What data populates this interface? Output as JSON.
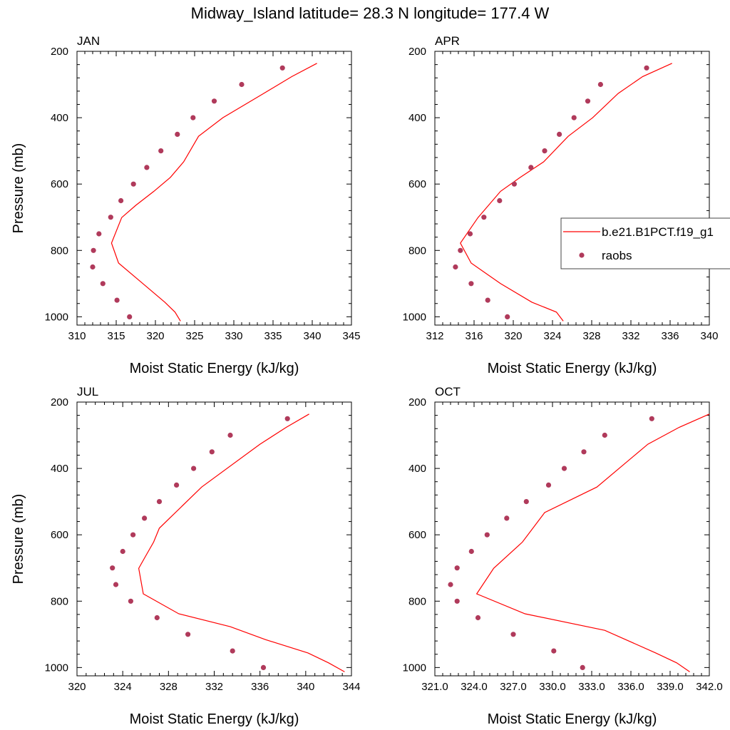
{
  "figure": {
    "title": "Midway_Island  latitude= 28.3 N longitude= 177.4 W"
  },
  "colors": {
    "model_line": "#ff0000",
    "raobs_marker": "#b03a5b",
    "axis": "#000000"
  },
  "chart_data": [
    {
      "type": "line",
      "panel": "JAN",
      "title": "JAN",
      "xlabel": "Moist Static Energy (kJ/kg)",
      "ylabel": "Pressure (mb)",
      "xlim": [
        310,
        345
      ],
      "ylim": [
        1025,
        200
      ],
      "xticks": [
        310,
        315,
        320,
        325,
        330,
        335,
        340,
        345
      ],
      "xtick_labels": [
        "310",
        "315",
        "320",
        "325",
        "330",
        "335",
        "340",
        "345"
      ],
      "yticks": [
        200,
        400,
        600,
        800,
        1000
      ],
      "ytick_labels": [
        "200",
        "400",
        "600",
        "800",
        "1000"
      ],
      "y_inverted": true,
      "series": [
        {
          "name": "b.e21.B1PCT.f19_g1",
          "kind": "line",
          "x": [
            340.6,
            337.4,
            333.8,
            328.6,
            325.5,
            323.6,
            321.9,
            319.8,
            317.5,
            315.7,
            314.4,
            315.3,
            318.4,
            321.2,
            322.5,
            323.2
          ],
          "y": [
            236,
            276,
            327,
            400,
            456,
            533,
            580,
            622,
            664,
            701,
            778,
            838,
            900,
            956,
            986,
            1013
          ]
        },
        {
          "name": "raobs",
          "kind": "scatter",
          "x": [
            336.2,
            331.0,
            327.5,
            324.8,
            322.8,
            320.7,
            318.9,
            317.2,
            315.6,
            314.3,
            312.8,
            312.1,
            312.0,
            313.3,
            315.1,
            316.7
          ],
          "y": [
            250,
            300,
            350,
            400,
            450,
            500,
            550,
            600,
            650,
            700,
            750,
            800,
            850,
            900,
            950,
            1000
          ]
        }
      ]
    },
    {
      "type": "line",
      "panel": "APR",
      "title": "APR",
      "xlabel": "Moist Static Energy (kJ/kg)",
      "ylabel": "",
      "xlim": [
        312,
        340
      ],
      "ylim": [
        1025,
        200
      ],
      "xticks": [
        312,
        316,
        320,
        324,
        328,
        332,
        336,
        340
      ],
      "xtick_labels": [
        "312",
        "316",
        "320",
        "324",
        "328",
        "332",
        "336",
        "340"
      ],
      "yticks": [
        200,
        400,
        600,
        800,
        1000
      ],
      "ytick_labels": [
        "200",
        "400",
        "600",
        "800",
        "1000"
      ],
      "y_inverted": true,
      "legend": {
        "position": "right",
        "entries": [
          "b.e21.B1PCT.f19_g1",
          "raobs"
        ]
      },
      "series": [
        {
          "name": "b.e21.B1PCT.f19_g1",
          "kind": "line",
          "x": [
            336.2,
            333.2,
            330.7,
            328.1,
            325.6,
            323.1,
            320.7,
            318.7,
            316.4,
            314.6,
            315.7,
            318.7,
            321.9,
            324.4,
            325.1
          ],
          "y": [
            236,
            276,
            327,
            400,
            456,
            533,
            580,
            622,
            701,
            778,
            838,
            900,
            956,
            986,
            1013
          ]
        },
        {
          "name": "raobs",
          "kind": "scatter",
          "x": [
            333.6,
            328.9,
            327.6,
            326.2,
            324.7,
            323.2,
            321.8,
            320.1,
            318.6,
            317.0,
            315.6,
            314.6,
            314.1,
            315.7,
            317.4,
            319.4
          ],
          "y": [
            250,
            300,
            350,
            400,
            450,
            500,
            550,
            600,
            650,
            700,
            750,
            800,
            850,
            900,
            950,
            1000
          ]
        }
      ]
    },
    {
      "type": "line",
      "panel": "JUL",
      "title": "JUL",
      "xlabel": "Moist Static Energy (kJ/kg)",
      "ylabel": "Pressure (mb)",
      "xlim": [
        320,
        344
      ],
      "ylim": [
        1025,
        200
      ],
      "xticks": [
        320,
        324,
        328,
        332,
        336,
        340,
        344
      ],
      "xtick_labels": [
        "320",
        "324",
        "328",
        "332",
        "336",
        "340",
        "344"
      ],
      "yticks": [
        200,
        400,
        600,
        800,
        1000
      ],
      "ytick_labels": [
        "200",
        "400",
        "600",
        "800",
        "1000"
      ],
      "y_inverted": true,
      "series": [
        {
          "name": "b.e21.B1PCT.f19_g1",
          "kind": "line",
          "x": [
            340.3,
            338.3,
            336.0,
            330.9,
            327.2,
            326.7,
            326.0,
            325.4,
            325.8,
            328.9,
            333.4,
            336.5,
            340.2,
            342.0,
            343.4
          ],
          "y": [
            236,
            276,
            327,
            456,
            580,
            622,
            664,
            701,
            778,
            838,
            877,
            916,
            956,
            986,
            1013
          ]
        },
        {
          "name": "raobs",
          "kind": "scatter",
          "x": [
            338.4,
            333.4,
            331.8,
            330.2,
            328.7,
            327.2,
            325.9,
            324.9,
            324.0,
            323.1,
            323.4,
            324.7,
            327.0,
            329.7,
            333.6,
            336.3
          ],
          "y": [
            250,
            300,
            350,
            400,
            450,
            500,
            550,
            600,
            650,
            700,
            750,
            800,
            850,
            900,
            950,
            1000
          ]
        }
      ]
    },
    {
      "type": "line",
      "panel": "OCT",
      "title": "OCT",
      "xlabel": "Moist Static Energy (kJ/kg)",
      "ylabel": "",
      "xlim": [
        321,
        342
      ],
      "ylim": [
        1025,
        200
      ],
      "xticks": [
        321,
        324,
        327,
        330,
        333,
        336,
        339,
        342
      ],
      "xtick_labels": [
        "321.0",
        "324.0",
        "327.0",
        "330.0",
        "333.0",
        "336.0",
        "339.0",
        "342.0"
      ],
      "yticks": [
        200,
        400,
        600,
        800,
        1000
      ],
      "ytick_labels": [
        "200",
        "400",
        "600",
        "800",
        "1000"
      ],
      "y_inverted": true,
      "series": [
        {
          "name": "b.e21.B1PCT.f19_g1",
          "kind": "line",
          "x": [
            342.0,
            339.7,
            337.3,
            333.4,
            329.4,
            327.7,
            325.5,
            324.2,
            327.9,
            334.0,
            337.9,
            339.5,
            340.5
          ],
          "y": [
            236,
            276,
            327,
            456,
            533,
            622,
            701,
            778,
            838,
            888,
            956,
            986,
            1013
          ]
        },
        {
          "name": "raobs",
          "kind": "scatter",
          "x": [
            337.6,
            334.0,
            332.4,
            330.9,
            329.7,
            328.0,
            326.5,
            325.0,
            323.8,
            322.7,
            322.2,
            322.7,
            324.3,
            327.0,
            330.1,
            332.3
          ],
          "y": [
            250,
            300,
            350,
            400,
            450,
            500,
            550,
            600,
            650,
            700,
            750,
            800,
            850,
            900,
            950,
            1000
          ]
        }
      ]
    }
  ]
}
